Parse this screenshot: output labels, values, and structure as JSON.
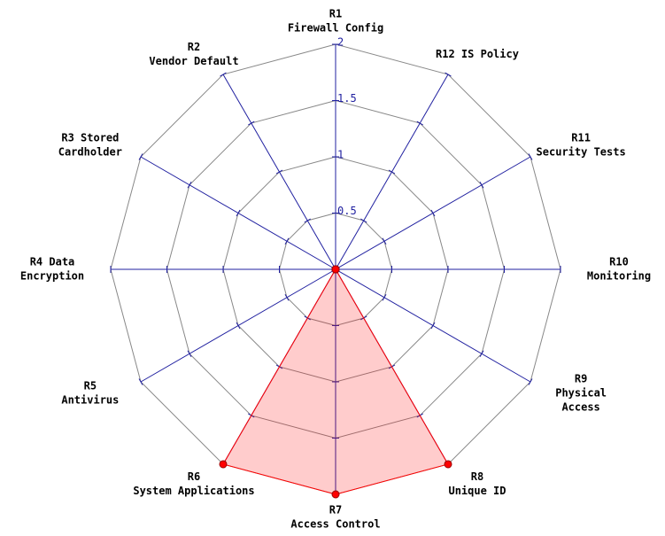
{
  "chart_data": {
    "type": "radar",
    "categories": [
      [
        "R1",
        "Firewall Config"
      ],
      [
        "R2",
        "Vendor Default"
      ],
      [
        "R3 Stored",
        "Cardholder"
      ],
      [
        "R4 Data",
        "Encryption"
      ],
      [
        "R5",
        "Antivirus"
      ],
      [
        "R6",
        "System Applications"
      ],
      [
        "R7",
        "Access Control"
      ],
      [
        "R8",
        "Unique ID"
      ],
      [
        "R9",
        "Physical",
        "Access"
      ],
      [
        "R10",
        "Monitoring"
      ],
      [
        "R11",
        "Security Tests"
      ],
      [
        "R12 IS Policy"
      ]
    ],
    "values": [
      0,
      0,
      0,
      0,
      0,
      2,
      2,
      2,
      0,
      0,
      0,
      0
    ],
    "color": "#ff0000",
    "fill": "rgba(255,0,0,0.2)",
    "axis_color": "#2020a0",
    "grid_color": "#888888",
    "ylim": [
      0,
      2
    ],
    "yticks": [
      0.5,
      1,
      1.5,
      2
    ],
    "grid": true
  }
}
